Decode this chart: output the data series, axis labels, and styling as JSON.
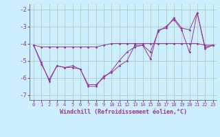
{
  "xlabel": "Windchill (Refroidissement éolien,°C)",
  "background_color": "#cceeff",
  "grid_color": "#aaccbb",
  "line_color": "#993399",
  "ylim": [
    -7.3,
    -1.7
  ],
  "xlim": [
    -0.5,
    23.5
  ],
  "yticks": [
    -7,
    -6,
    -5,
    -4,
    -3,
    -2
  ],
  "xticks": [
    0,
    1,
    2,
    3,
    4,
    5,
    6,
    7,
    8,
    9,
    10,
    11,
    12,
    13,
    14,
    15,
    16,
    17,
    18,
    19,
    20,
    21,
    22,
    23
  ],
  "series": [
    {
      "x": [
        0,
        1,
        2,
        3,
        4,
        5,
        6,
        7,
        8,
        9,
        10,
        11,
        12,
        13,
        14,
        15,
        16,
        17,
        18,
        19,
        20,
        21,
        22,
        23
      ],
      "y": [
        -4.1,
        -5.1,
        -6.2,
        -5.3,
        -5.4,
        -5.4,
        -5.5,
        -6.5,
        -6.5,
        -5.9,
        -5.7,
        -5.3,
        -5.0,
        -4.1,
        -4.1,
        -4.9,
        -3.2,
        -3.1,
        -2.5,
        -3.1,
        -3.2,
        -2.2,
        -4.2,
        -4.1
      ]
    },
    {
      "x": [
        0,
        1,
        2,
        3,
        4,
        5,
        6,
        7,
        8,
        9,
        10,
        11,
        12,
        13,
        14,
        15,
        16,
        17,
        18,
        19,
        20,
        21,
        22,
        23
      ],
      "y": [
        -4.1,
        -4.2,
        -4.2,
        -4.2,
        -4.2,
        -4.2,
        -4.2,
        -4.2,
        -4.2,
        -4.1,
        -4.0,
        -4.0,
        -4.0,
        -4.0,
        -4.0,
        -4.0,
        -4.0,
        -4.0,
        -4.0,
        -4.0,
        -4.0,
        -4.0,
        -4.1,
        -4.1
      ]
    },
    {
      "x": [
        0,
        1,
        2,
        3,
        4,
        5,
        6,
        7,
        8,
        9,
        10,
        11,
        12,
        13,
        14,
        15,
        16,
        17,
        18,
        19,
        20,
        21,
        22,
        23
      ],
      "y": [
        -4.1,
        -5.2,
        -6.1,
        -5.3,
        -5.4,
        -5.3,
        -5.5,
        -6.4,
        -6.4,
        -6.0,
        -5.6,
        -5.0,
        -4.5,
        -4.2,
        -4.1,
        -4.5,
        -3.3,
        -3.0,
        -2.6,
        -3.2,
        -4.5,
        -2.2,
        -4.3,
        -4.1
      ]
    }
  ]
}
